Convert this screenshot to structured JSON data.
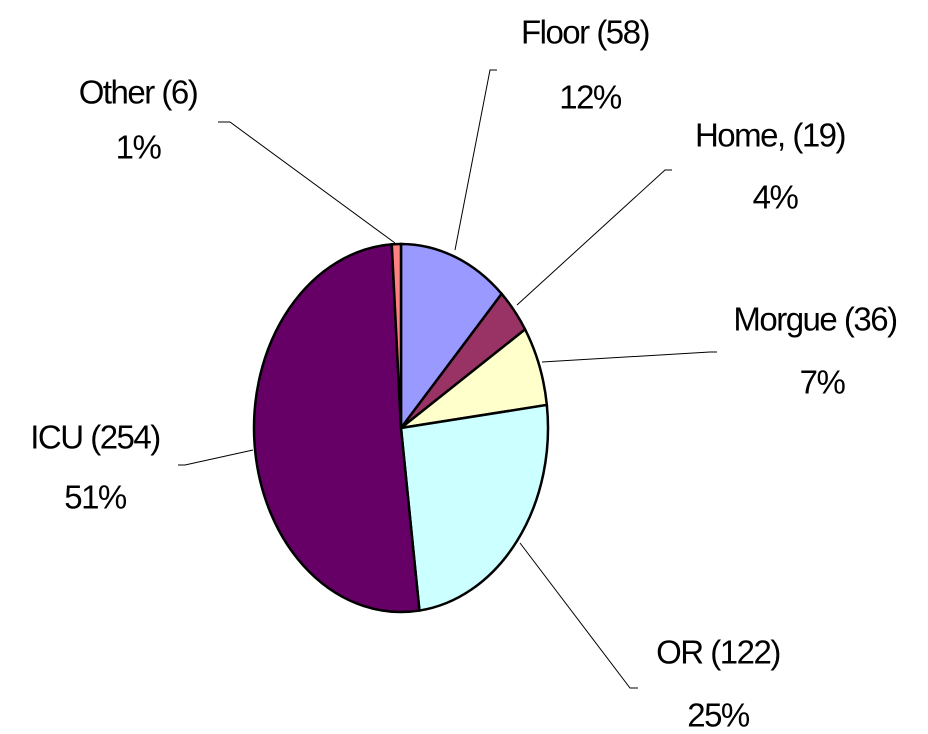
{
  "chart_data": {
    "type": "pie",
    "categories": [
      "Floor (58)",
      "Home, (19)",
      "Morgue (36)",
      "OR (122)",
      "ICU (254)",
      "Other (6)"
    ],
    "values": [
      12,
      4,
      7,
      25,
      51,
      1
    ],
    "value_labels": [
      "12%",
      "4%",
      "7%",
      "25%",
      "51%",
      "1%"
    ],
    "colors": [
      "#9999ff",
      "#993366",
      "#ffffcc",
      "#ccffff",
      "#660066",
      "#ff8080"
    ]
  }
}
